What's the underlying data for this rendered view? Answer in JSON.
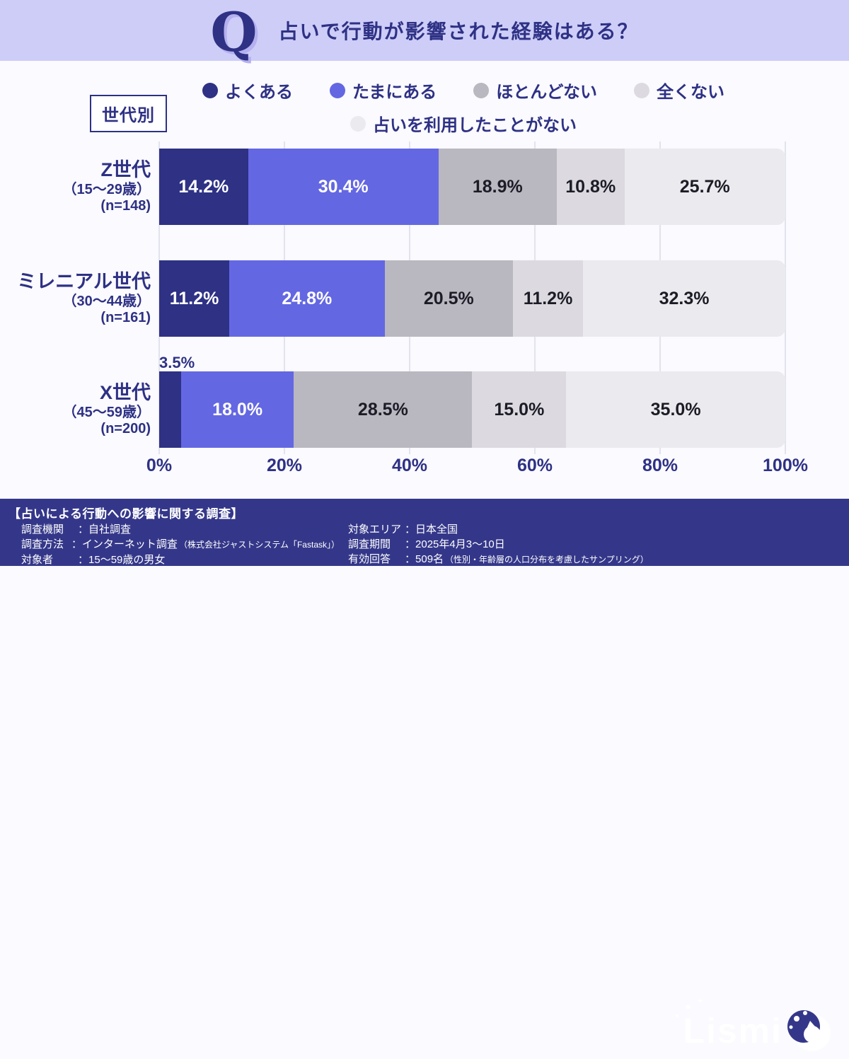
{
  "header": {
    "logo_letter": "Q",
    "title": "占いで行動が影響された経験はある？"
  },
  "group_badge": "世代別",
  "colors": {
    "header_bg": "#cdcdf8",
    "page_bg": "#fafaff",
    "footer_bg": "#343789",
    "text_navy": "#2e3184",
    "gridline": "#e3e3ed",
    "series": [
      "#2e3184",
      "#6467e2",
      "#b9b7c0",
      "#dcdae0",
      "#ebeaee"
    ],
    "series_text": [
      "#ffffff",
      "#ffffff",
      "#1c1c26",
      "#1c1c26",
      "#1c1c26"
    ]
  },
  "chart_data": {
    "type": "bar",
    "stacked": true,
    "orientation": "horizontal",
    "unit": "%",
    "xlim": [
      0,
      100
    ],
    "x_ticks": [
      "0%",
      "20%",
      "40%",
      "60%",
      "80%",
      "100%"
    ],
    "grid": "vertical",
    "legend_position": "top",
    "legend": [
      "よくある",
      "たまにある",
      "ほとんどない",
      "全くない",
      "占いを利用したことがない"
    ],
    "categories": [
      {
        "name": "Z世代",
        "age_range": "（15〜29歳）",
        "n": "(n=148)"
      },
      {
        "name": "ミレニアル世代",
        "age_range": "（30〜44歳）",
        "n": "(n=161)"
      },
      {
        "name": "X世代",
        "age_range": "（45〜59歳）",
        "n": "(n=200)"
      }
    ],
    "series": [
      {
        "name": "よくある",
        "values": [
          14.2,
          11.2,
          3.5
        ]
      },
      {
        "name": "たまにある",
        "values": [
          30.4,
          24.8,
          18.0
        ]
      },
      {
        "name": "ほとんどない",
        "values": [
          18.9,
          20.5,
          28.5
        ]
      },
      {
        "name": "全くない",
        "values": [
          10.8,
          11.2,
          15.0
        ]
      },
      {
        "name": "占いを利用したことがない",
        "values": [
          25.7,
          32.3,
          35.0
        ]
      }
    ]
  },
  "footer": {
    "title": "【占いによる行動への影響に関する調査】",
    "separator": "：",
    "left_rows": [
      {
        "label": "調査機関",
        "value": "自社調査",
        "note": ""
      },
      {
        "label": "調査方法",
        "value": "インターネット調査",
        "note": "（株式会社ジャストシステム「Fastask」）"
      },
      {
        "label": "対象者",
        "value": "15〜59歳の男女",
        "note": ""
      }
    ],
    "right_rows": [
      {
        "label": "対象エリア",
        "value": "日本全国",
        "note": ""
      },
      {
        "label": "調査期間",
        "value": "2025年4月3〜10日",
        "note": ""
      },
      {
        "label": "有効回答",
        "value": "509名",
        "note": "（性別・年齢層の人口分布を考慮したサンプリング）"
      }
    ],
    "logo_text": "Lismi"
  }
}
